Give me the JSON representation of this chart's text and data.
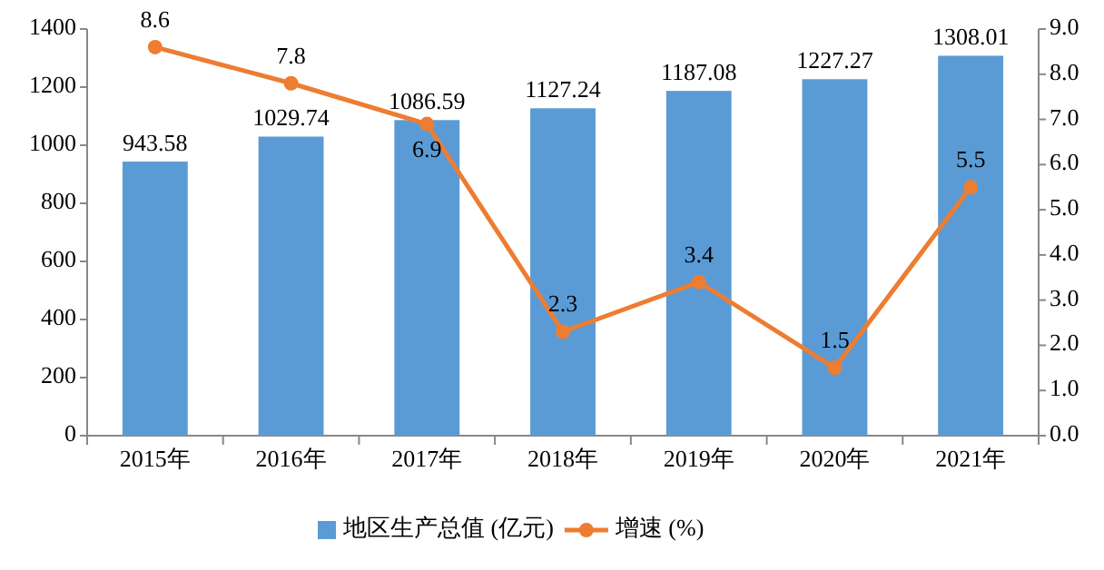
{
  "chart_data": {
    "type": "bar",
    "categories": [
      "2015年",
      "2016年",
      "2017年",
      "2018年",
      "2019年",
      "2020年",
      "2021年"
    ],
    "series": [
      {
        "name": "地区生产总值 (亿元)",
        "color": "#5b9bd5",
        "values": [
          943.58,
          1029.74,
          1086.59,
          1127.24,
          1187.08,
          1227.27,
          1308.01
        ]
      },
      {
        "name": "增速 (%)",
        "type": "line",
        "axis": "y2",
        "color": "#ed7d31",
        "marker": "circle",
        "values": [
          8.6,
          7.8,
          6.9,
          2.3,
          3.4,
          1.5,
          5.5
        ]
      }
    ],
    "ylim": [
      0,
      1400
    ],
    "yticks": [
      0,
      200,
      400,
      600,
      800,
      1000,
      1200,
      1400
    ],
    "y2lim": [
      0,
      9
    ],
    "y2ticks": [
      {
        "value": 0,
        "label": "0.0"
      },
      {
        "value": 1,
        "label": "1.0"
      },
      {
        "value": 2,
        "label": "2.0"
      },
      {
        "value": 3,
        "label": "3.0"
      },
      {
        "value": 4,
        "label": "4.0"
      },
      {
        "value": 5,
        "label": "5.0"
      },
      {
        "value": 6,
        "label": "6.0"
      },
      {
        "value": 7,
        "label": "7.0"
      },
      {
        "value": 8,
        "label": "8.0"
      },
      {
        "value": 9,
        "label": "9.0"
      }
    ],
    "data_labels": true,
    "legend": "bottom"
  }
}
